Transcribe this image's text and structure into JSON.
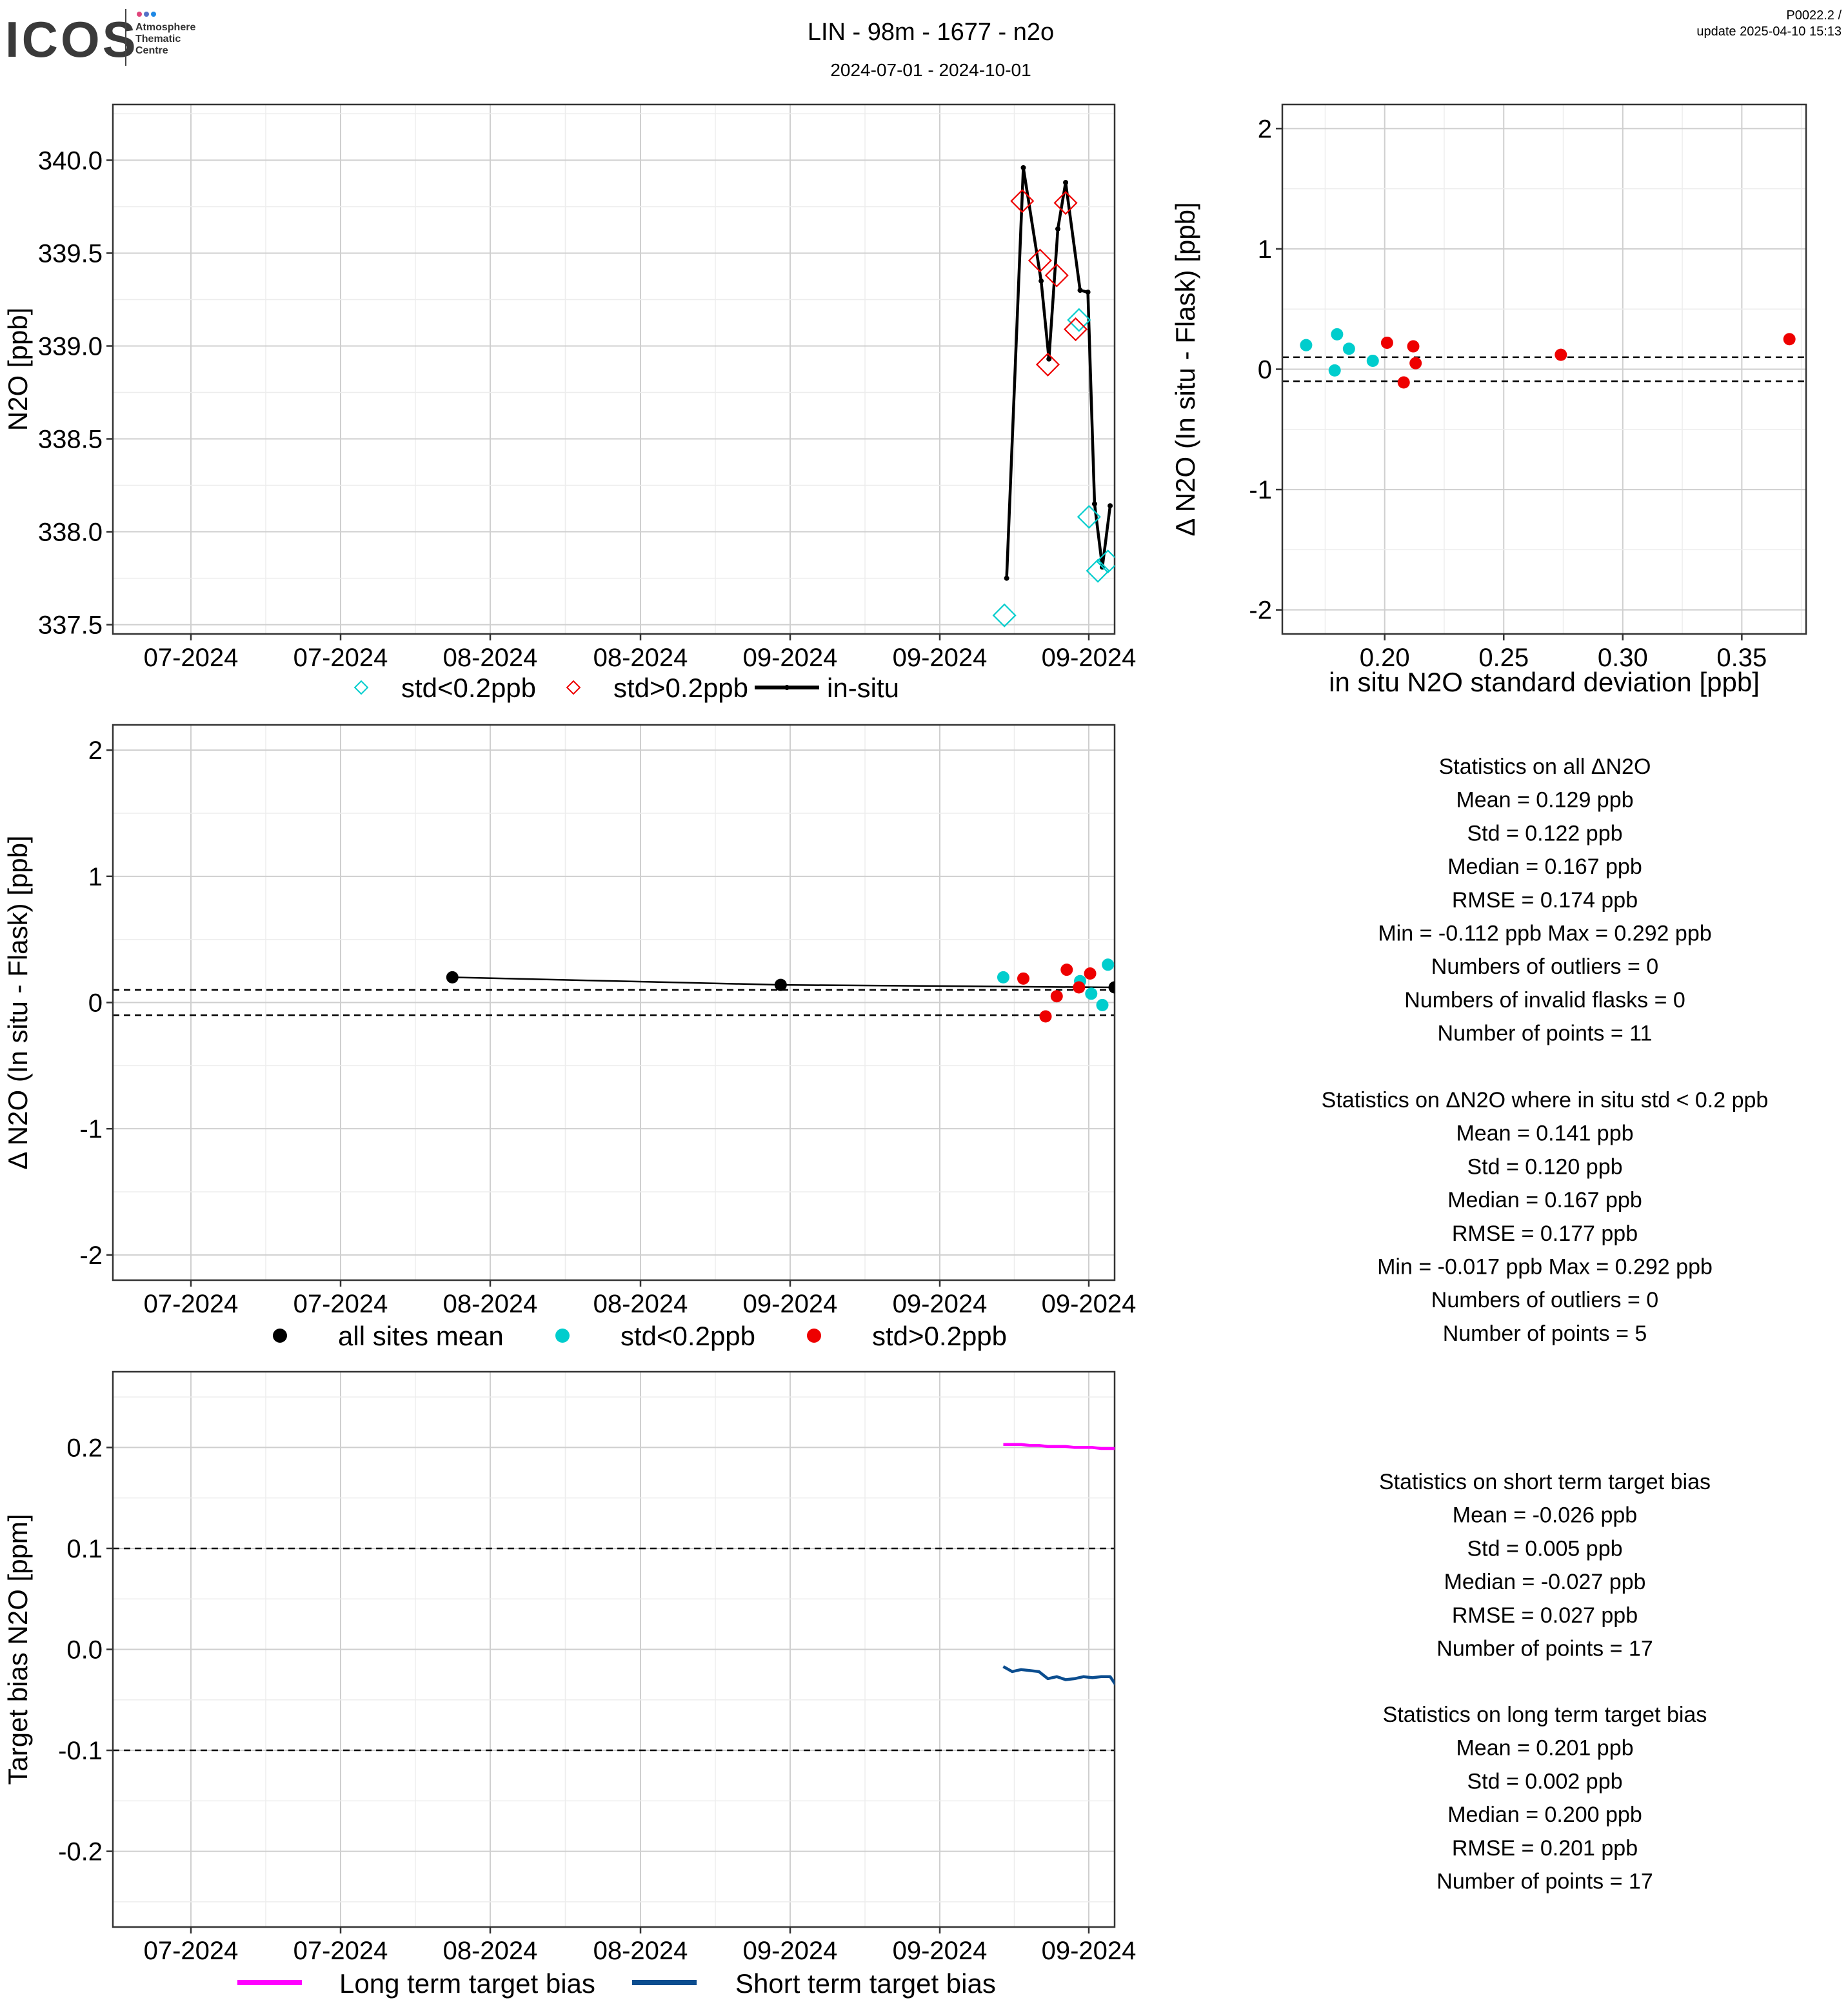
{
  "header": {
    "logo_text": "ICOS",
    "logo_sub": [
      "Atmosphere",
      "Thematic",
      "Centre"
    ],
    "title": "LIN - 98m - 1677 - n2o",
    "date_range": "2024-07-01 - 2024-10-01",
    "version": "P0022.2 /",
    "update": "update  2025-04-10 15:13"
  },
  "colors": {
    "cyan": "#00CDCD",
    "red": "#EE0000",
    "black": "#000000",
    "magenta": "#FF00FF",
    "navy": "#0B4D8F",
    "grid_major": "#CFCFCF",
    "grid_minor": "#EDEDED"
  },
  "chart_data": [
    {
      "id": "n2o_timeseries",
      "type": "line",
      "title": "",
      "xlabel": "",
      "ylabel": "N2O [ppb]",
      "x_ticks": [
        "07-2024",
        "07-2024",
        "08-2024",
        "08-2024",
        "09-2024",
        "09-2024",
        "09-2024"
      ],
      "xlim": [
        0,
        90
      ],
      "ylim": [
        337.45,
        340.3
      ],
      "y_ticks": [
        337.5,
        338.0,
        338.5,
        339.0,
        339.5,
        340.0
      ],
      "y_tick_labels": [
        "337.5",
        "338.0",
        "338.5",
        "339.0",
        "339.5",
        "340.0"
      ],
      "legend": [
        "std<0.2ppb",
        "std>0.2ppb",
        "in-situ"
      ],
      "legend_position": "bottom",
      "series": [
        {
          "name": "in-situ",
          "style": "line",
          "x": [
            80.3,
            81.8,
            83.4,
            84.1,
            84.9,
            85.6,
            86.9,
            87.6,
            88.2,
            88.9,
            89.6
          ],
          "y": [
            337.75,
            339.96,
            339.35,
            338.93,
            339.63,
            339.88,
            339.3,
            339.29,
            338.15,
            337.81,
            338.14
          ]
        },
        {
          "name": "std<0.2ppb",
          "style": "diamond",
          "x": [
            80.1,
            86.8,
            87.7,
            88.5,
            89.4
          ],
          "y": [
            337.55,
            339.14,
            338.08,
            337.79,
            337.84
          ]
        },
        {
          "name": "std>0.2ppb",
          "style": "diamond",
          "x": [
            81.7,
            83.3,
            84.0,
            84.8,
            85.6,
            86.5
          ],
          "y": [
            339.78,
            339.46,
            338.9,
            339.38,
            339.77,
            339.09
          ]
        }
      ]
    },
    {
      "id": "delta_vs_std",
      "type": "scatter",
      "title": "",
      "xlabel": "in situ N2O standard deviation [ppb]",
      "ylabel": "Δ N2O (In situ - Flask) [ppb]",
      "xlim": [
        0.157,
        0.377
      ],
      "ylim": [
        -2.2,
        2.2
      ],
      "x_ticks": [
        0.2,
        0.25,
        0.3,
        0.35
      ],
      "x_tick_labels": [
        "0.20",
        "0.25",
        "0.30",
        "0.35"
      ],
      "y_ticks": [
        -2,
        -1,
        0,
        1,
        2
      ],
      "y_tick_labels": [
        "-2",
        "-1",
        "0",
        "1",
        "2"
      ],
      "hlines": [
        0.1,
        -0.1
      ],
      "series": [
        {
          "name": "std<0.2ppb",
          "x": [
            0.167,
            0.18,
            0.185,
            0.179,
            0.195
          ],
          "y": [
            0.2,
            0.29,
            0.17,
            -0.01,
            0.07
          ]
        },
        {
          "name": "std>0.2ppb",
          "x": [
            0.201,
            0.212,
            0.213,
            0.208,
            0.274,
            0.37
          ],
          "y": [
            0.22,
            0.19,
            0.05,
            -0.11,
            0.12,
            0.25
          ]
        }
      ]
    },
    {
      "id": "delta_timeseries",
      "type": "scatter",
      "title": "",
      "xlabel": "",
      "ylabel": "Δ N2O (In situ - Flask) [ppb]",
      "x_ticks": [
        "07-2024",
        "07-2024",
        "08-2024",
        "08-2024",
        "09-2024",
        "09-2024",
        "09-2024"
      ],
      "xlim": [
        0,
        90
      ],
      "ylim": [
        -2.2,
        2.2
      ],
      "y_ticks": [
        -2,
        -1,
        0,
        1,
        2
      ],
      "y_tick_labels": [
        "-2",
        "-1",
        "0",
        "1",
        "2"
      ],
      "hlines": [
        0.1,
        -0.1
      ],
      "legend": [
        "all sites mean",
        "std<0.2ppb",
        "std>0.2ppb"
      ],
      "legend_position": "bottom",
      "series": [
        {
          "name": "all sites mean",
          "style": "line-points",
          "x": [
            30.5,
            60.0,
            90.0
          ],
          "y": [
            0.2,
            0.14,
            0.12
          ]
        },
        {
          "name": "std<0.2ppb",
          "x": [
            80.0,
            86.9,
            87.9,
            88.9,
            89.4
          ],
          "y": [
            0.2,
            0.17,
            0.07,
            -0.02,
            0.3
          ]
        },
        {
          "name": "std>0.2ppb",
          "x": [
            81.8,
            83.8,
            84.8,
            85.7,
            86.8,
            87.8
          ],
          "y": [
            0.19,
            -0.11,
            0.05,
            0.26,
            0.12,
            0.23
          ]
        }
      ]
    },
    {
      "id": "target_bias",
      "type": "line",
      "title": "",
      "xlabel": "",
      "ylabel": "Target bias N2O [ppm]",
      "x_ticks": [
        "07-2024",
        "07-2024",
        "08-2024",
        "08-2024",
        "09-2024",
        "09-2024",
        "09-2024"
      ],
      "xlim": [
        0,
        90
      ],
      "ylim": [
        -0.275,
        0.275
      ],
      "y_ticks": [
        -0.2,
        -0.1,
        0.0,
        0.1,
        0.2
      ],
      "y_tick_labels": [
        "-0.2",
        "-0.1",
        "0.0",
        "0.1",
        "0.2"
      ],
      "hlines": [
        0.1,
        -0.1
      ],
      "legend": [
        "Long term target bias",
        "Short term target bias"
      ],
      "legend_position": "bottom",
      "series": [
        {
          "name": "Long term target bias",
          "x": [
            80.0,
            80.8,
            81.6,
            82.4,
            83.2,
            84.0,
            84.8,
            85.6,
            86.4,
            87.2,
            88.0,
            88.8,
            89.6,
            90.4,
            91.2,
            92.0,
            93.0
          ],
          "y": [
            0.203,
            0.203,
            0.203,
            0.202,
            0.202,
            0.201,
            0.201,
            0.201,
            0.2,
            0.2,
            0.2,
            0.199,
            0.199,
            0.199,
            0.198,
            0.198,
            0.199
          ]
        },
        {
          "name": "Short term target bias",
          "x": [
            80.0,
            80.8,
            81.6,
            82.4,
            83.2,
            84.0,
            84.8,
            85.6,
            86.4,
            87.2,
            88.0,
            88.8,
            89.6,
            90.4,
            91.2,
            92.0,
            93.0
          ],
          "y": [
            -0.017,
            -0.022,
            -0.02,
            -0.021,
            -0.022,
            -0.029,
            -0.027,
            -0.03,
            -0.029,
            -0.027,
            -0.028,
            -0.027,
            -0.027,
            -0.04,
            -0.029,
            -0.028,
            -0.025
          ]
        }
      ]
    }
  ],
  "stats_all": [
    "Statistics on all ΔN2O",
    "Mean =  0.129 ppb",
    "Std =  0.122 ppb",
    "Median =  0.167 ppb",
    "RMSE =  0.174 ppb",
    "Min =  -0.112 ppb Max =  0.292 ppb",
    "Numbers of outliers =  0",
    "Numbers of invalid flasks =  0",
    "Number of points =  11"
  ],
  "stats_low_std": [
    "Statistics on ΔN2O where in situ std < 0.2 ppb",
    "Mean =  0.141 ppb",
    "Std =  0.120 ppb",
    "Median =  0.167 ppb",
    "RMSE =  0.177 ppb",
    "Min =  -0.017 ppb Max =  0.292 ppb",
    "Numbers of outliers =  0",
    "Number of points =  5"
  ],
  "stats_short_target": [
    "Statistics on short term target bias",
    "Mean =  -0.026 ppb",
    "Std =  0.005 ppb",
    "Median =  -0.027 ppb",
    "RMSE =  0.027 ppb",
    "Number of points =  17"
  ],
  "stats_long_target": [
    "Statistics on long term target bias",
    "Mean =  0.201 ppb",
    "Std =  0.002 ppb",
    "Median =  0.200 ppb",
    "RMSE =  0.201 ppb",
    "Number of points =  17"
  ]
}
